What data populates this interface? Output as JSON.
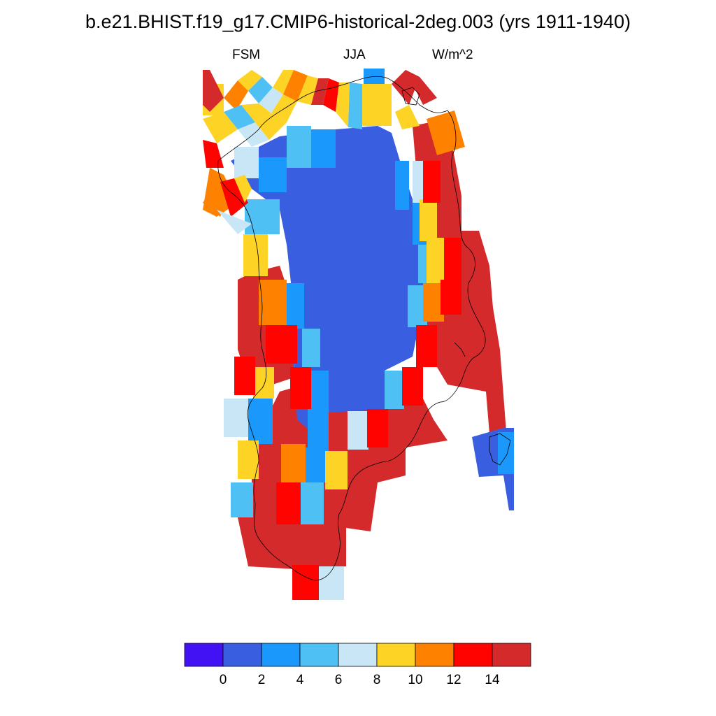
{
  "title": "b.e21.BHIST.f19_g17.CMIP6-historical-2deg.003 (yrs 1911-1940)",
  "subtitle": {
    "left": "FSM",
    "center": "JJA",
    "right": "W/m^2"
  },
  "colorbar": {
    "colors": [
      "#4212f5",
      "#395fe0",
      "#1b98fc",
      "#4fc0f3",
      "#c9e6f6",
      "#fdd326",
      "#fe8200",
      "#fe0300",
      "#d42a2c"
    ],
    "tick_labels": [
      "0",
      "2",
      "4",
      "6",
      "8",
      "10",
      "12",
      "14"
    ]
  },
  "map": {
    "region": "Greenland",
    "field": "FSM",
    "colors": {
      "ice_interior": "#395fe0",
      "margin": "#d42a2c"
    }
  }
}
